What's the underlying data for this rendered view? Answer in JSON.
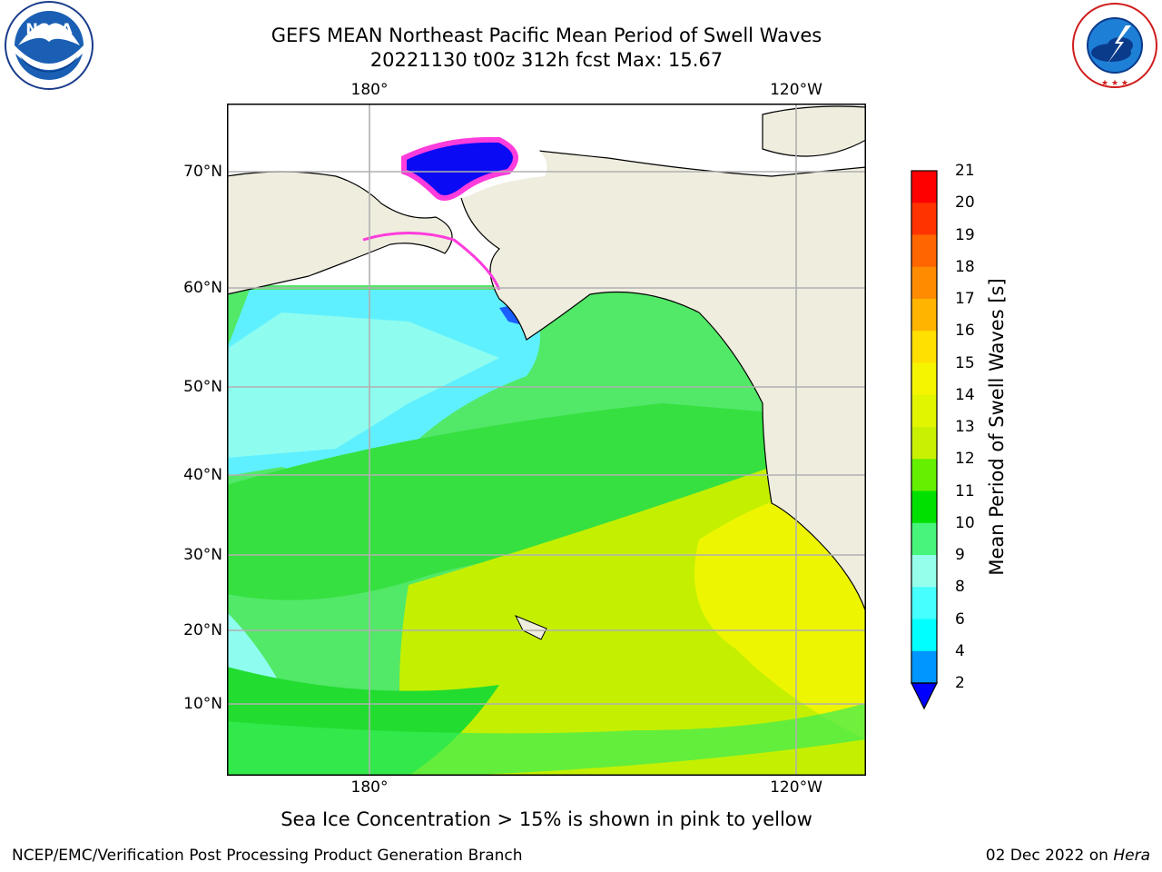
{
  "title": {
    "line1": "GEFS MEAN Northeast Pacific Mean Period of Swell Waves",
    "line2": "20221130 t00z 312h fcst   Max: 15.67"
  },
  "map": {
    "top_lon_labels": [
      "180°",
      "120°W"
    ],
    "bottom_lon_labels": [
      "180°",
      "120°W"
    ],
    "lat_labels": [
      "70°N",
      "60°N",
      "50°N",
      "40°N",
      "30°N",
      "20°N",
      "10°N"
    ],
    "land_color": "#efedde",
    "grid_color": "#b0b0b0"
  },
  "colorbar": {
    "label": "Mean Period of Swell Waves [s]",
    "ticks": [
      "21",
      "20",
      "19",
      "18",
      "17",
      "16",
      "15",
      "14",
      "13",
      "12",
      "11",
      "10",
      "9",
      "8",
      "6",
      "4",
      "2"
    ],
    "colors": [
      "#ff0000",
      "#ff3300",
      "#ff6600",
      "#ff8c00",
      "#ffb400",
      "#ffe000",
      "#f5f500",
      "#e1f500",
      "#c8f000",
      "#64f000",
      "#00e000",
      "#46f57a",
      "#96ffeb",
      "#46ffff",
      "#00ffff",
      "#0096ff"
    ],
    "extend_color": "#0000ff"
  },
  "footnote": "Sea Ice Concentration > 15% is shown in pink to yellow",
  "credit": "NCEP/EMC/Verification Post Processing Product Generation Branch",
  "date_stamp": {
    "date": "02 Dec 2022 on",
    "host": "Hera"
  },
  "logos": {
    "noaa_text": "NOAA",
    "noaa_ring_text": "NATIONAL OCEANIC AND ATMOSPHERIC ADMINISTRATION",
    "nws_ring_text": "NATIONAL WEATHER SERVICE"
  }
}
